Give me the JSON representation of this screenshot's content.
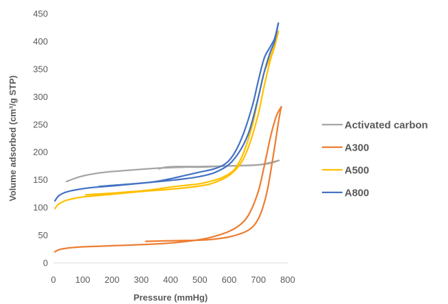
{
  "chart_data": {
    "type": "line",
    "title": "",
    "xlabel": "Pressure (mmHg)",
    "ylabel": "Volume adsorbed (cm³/g STP)",
    "xlim": [
      0,
      800
    ],
    "ylim": [
      0,
      450
    ],
    "xticks": [
      0,
      100,
      200,
      300,
      400,
      500,
      600,
      700,
      800
    ],
    "yticks": [
      0,
      50,
      100,
      150,
      200,
      250,
      300,
      350,
      400,
      450
    ],
    "grid": false,
    "legend": "right",
    "series": [
      {
        "name": "Activated carbon",
        "color": "#a5a5a5",
        "adsorption": [
          [
            45,
            147
          ],
          [
            70,
            152
          ],
          [
            100,
            157
          ],
          [
            150,
            162
          ],
          [
            200,
            165
          ],
          [
            250,
            167
          ],
          [
            300,
            169
          ],
          [
            350,
            171
          ],
          [
            400,
            172
          ],
          [
            450,
            173
          ],
          [
            500,
            173
          ],
          [
            550,
            174
          ],
          [
            600,
            175
          ],
          [
            650,
            176
          ],
          [
            700,
            177
          ],
          [
            740,
            180
          ],
          [
            770,
            185
          ]
        ],
        "desorption": [
          [
            770,
            185
          ],
          [
            700,
            177
          ],
          [
            600,
            175
          ],
          [
            500,
            174
          ],
          [
            420,
            174
          ],
          [
            385,
            173
          ],
          [
            360,
            170
          ]
        ]
      },
      {
        "name": "A300",
        "color": "#ed7d31",
        "adsorption": [
          [
            5,
            20
          ],
          [
            20,
            24
          ],
          [
            50,
            27
          ],
          [
            100,
            29
          ],
          [
            200,
            31
          ],
          [
            300,
            33
          ],
          [
            400,
            36
          ],
          [
            500,
            42
          ],
          [
            550,
            48
          ],
          [
            600,
            57
          ],
          [
            640,
            70
          ],
          [
            670,
            90
          ],
          [
            700,
            130
          ],
          [
            720,
            175
          ],
          [
            740,
            225
          ],
          [
            755,
            255
          ],
          [
            765,
            270
          ],
          [
            778,
            282
          ]
        ],
        "desorption": [
          [
            778,
            282
          ],
          [
            770,
            260
          ],
          [
            760,
            225
          ],
          [
            745,
            175
          ],
          [
            730,
            130
          ],
          [
            715,
            100
          ],
          [
            700,
            80
          ],
          [
            680,
            65
          ],
          [
            650,
            55
          ],
          [
            600,
            47
          ],
          [
            550,
            43
          ],
          [
            500,
            41
          ],
          [
            400,
            40
          ],
          [
            315,
            39
          ]
        ]
      },
      {
        "name": "A500",
        "color": "#ffc000",
        "adsorption": [
          [
            5,
            98
          ],
          [
            20,
            107
          ],
          [
            50,
            114
          ],
          [
            100,
            119
          ],
          [
            200,
            124
          ],
          [
            300,
            129
          ],
          [
            400,
            133
          ],
          [
            500,
            139
          ],
          [
            550,
            145
          ],
          [
            600,
            158
          ],
          [
            640,
            180
          ],
          [
            670,
            215
          ],
          [
            700,
            270
          ],
          [
            720,
            320
          ],
          [
            740,
            365
          ],
          [
            755,
            390
          ],
          [
            768,
            418
          ]
        ],
        "desorption": [
          [
            768,
            418
          ],
          [
            755,
            395
          ],
          [
            740,
            370
          ],
          [
            720,
            345
          ],
          [
            700,
            300
          ],
          [
            680,
            250
          ],
          [
            650,
            200
          ],
          [
            620,
            170
          ],
          [
            580,
            155
          ],
          [
            540,
            148
          ],
          [
            500,
            143
          ],
          [
            450,
            140
          ],
          [
            400,
            137
          ],
          [
            350,
            133
          ],
          [
            300,
            130
          ],
          [
            200,
            126
          ],
          [
            110,
            123
          ]
        ]
      },
      {
        "name": "A800",
        "color": "#4472c4",
        "adsorption": [
          [
            5,
            112
          ],
          [
            20,
            122
          ],
          [
            50,
            129
          ],
          [
            100,
            134
          ],
          [
            150,
            137
          ],
          [
            200,
            139
          ],
          [
            300,
            144
          ],
          [
            400,
            149
          ],
          [
            450,
            152
          ],
          [
            500,
            156
          ],
          [
            550,
            163
          ],
          [
            600,
            178
          ],
          [
            640,
            205
          ],
          [
            670,
            240
          ],
          [
            700,
            300
          ],
          [
            720,
            345
          ],
          [
            740,
            380
          ],
          [
            755,
            400
          ],
          [
            768,
            433
          ]
        ],
        "desorption": [
          [
            768,
            433
          ],
          [
            755,
            405
          ],
          [
            740,
            390
          ],
          [
            720,
            370
          ],
          [
            700,
            330
          ],
          [
            680,
            285
          ],
          [
            650,
            235
          ],
          [
            620,
            200
          ],
          [
            590,
            180
          ],
          [
            550,
            170
          ],
          [
            500,
            164
          ],
          [
            450,
            158
          ],
          [
            400,
            152
          ],
          [
            350,
            147
          ],
          [
            300,
            144
          ],
          [
            200,
            140
          ],
          [
            155,
            138
          ]
        ]
      }
    ]
  }
}
